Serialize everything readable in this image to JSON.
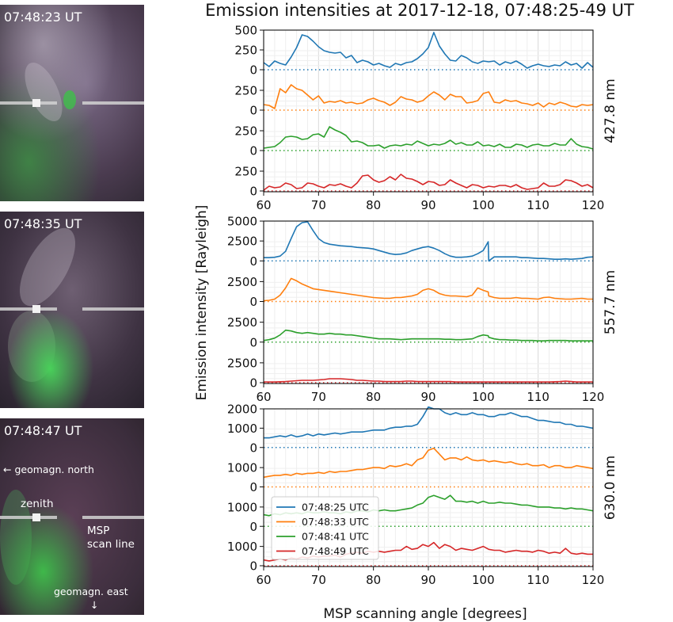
{
  "title": "Emission intensities at 2017-12-18, 07:48:25-49 UT",
  "photos": [
    {
      "time": "07:48:23 UT"
    },
    {
      "time": "07:48:35 UT"
    },
    {
      "time": "07:48:47 UT",
      "north_label": "← geomagn. north",
      "zenith_label": "zenith",
      "msp_label_1": "MSP",
      "msp_label_2": "scan line",
      "east_label": "geomagn. east",
      "east_arrow": "↓"
    }
  ],
  "colors": {
    "s0": "#1f77b4",
    "s1": "#ff7f0e",
    "s2": "#2ca02c",
    "s3": "#d62728",
    "grid": "#e6e6e6"
  },
  "legend_entries": [
    "07:48:25 UTC",
    "07:48:33 UTC",
    "07:48:41 UTC",
    "07:48:49 UTC"
  ],
  "chart_data": [
    {
      "type": "line",
      "wavelength_label": "427.8 nm",
      "xlim": [
        60,
        120
      ],
      "x_ticks": [
        60,
        70,
        80,
        90,
        100,
        110,
        120
      ],
      "x": [
        60,
        61,
        62,
        63,
        64,
        65,
        66,
        67,
        68,
        69,
        70,
        71,
        72,
        73,
        74,
        75,
        76,
        77,
        78,
        79,
        80,
        81,
        82,
        83,
        84,
        85,
        86,
        87,
        88,
        89,
        90,
        91,
        92,
        93,
        94,
        95,
        96,
        97,
        98,
        99,
        100,
        101,
        102,
        103,
        104,
        105,
        106,
        107,
        108,
        109,
        110,
        111,
        112,
        113,
        114,
        115,
        116,
        117,
        118,
        119,
        120
      ],
      "y_ticks_labeled": [
        [
          0,
          250,
          500
        ],
        [
          0,
          250
        ],
        [
          0,
          250
        ],
        [
          0,
          250
        ]
      ],
      "ylim": [
        0,
        500
      ],
      "series": [
        {
          "name": "07:48:25 UTC",
          "values": [
            90,
            40,
            110,
            80,
            60,
            160,
            280,
            440,
            420,
            360,
            290,
            240,
            220,
            210,
            220,
            150,
            180,
            90,
            120,
            100,
            60,
            80,
            50,
            30,
            80,
            60,
            90,
            100,
            140,
            200,
            280,
            470,
            300,
            200,
            120,
            110,
            180,
            150,
            100,
            80,
            110,
            100,
            110,
            60,
            100,
            80,
            110,
            70,
            20,
            50,
            70,
            50,
            40,
            60,
            50,
            100,
            60,
            80,
            20,
            90,
            30
          ]
        },
        {
          "name": "07:48:33 UTC",
          "values": [
            70,
            60,
            20,
            270,
            220,
            320,
            270,
            250,
            190,
            130,
            180,
            90,
            110,
            100,
            120,
            90,
            100,
            80,
            90,
            130,
            150,
            120,
            100,
            60,
            100,
            170,
            140,
            130,
            100,
            120,
            180,
            230,
            190,
            130,
            200,
            170,
            170,
            90,
            100,
            120,
            210,
            230,
            100,
            90,
            130,
            110,
            120,
            90,
            80,
            60,
            90,
            40,
            90,
            70,
            100,
            80,
            50,
            40,
            70,
            60,
            70
          ]
        },
        {
          "name": "07:48:41 UTC",
          "values": [
            30,
            40,
            50,
            100,
            170,
            180,
            170,
            140,
            150,
            200,
            210,
            170,
            300,
            260,
            230,
            190,
            110,
            120,
            100,
            60,
            60,
            70,
            30,
            60,
            70,
            60,
            80,
            70,
            120,
            90,
            60,
            80,
            70,
            90,
            130,
            80,
            100,
            70,
            70,
            110,
            60,
            70,
            50,
            80,
            40,
            40,
            80,
            70,
            40,
            70,
            80,
            60,
            60,
            90,
            70,
            70,
            150,
            80,
            50,
            40,
            20
          ]
        },
        {
          "name": "07:48:49 UTC",
          "values": [
            10,
            60,
            40,
            50,
            100,
            80,
            30,
            40,
            100,
            90,
            60,
            40,
            80,
            70,
            90,
            60,
            40,
            100,
            190,
            200,
            140,
            110,
            130,
            180,
            140,
            210,
            160,
            150,
            120,
            80,
            120,
            110,
            70,
            80,
            140,
            100,
            70,
            40,
            80,
            70,
            40,
            60,
            50,
            70,
            70,
            50,
            80,
            40,
            20,
            30,
            40,
            100,
            60,
            60,
            80,
            140,
            130,
            100,
            60,
            80,
            40
          ]
        }
      ]
    },
    {
      "type": "line",
      "wavelength_label": "557.7 nm",
      "xlim": [
        60,
        120
      ],
      "x_ticks": [
        60,
        70,
        80,
        90,
        100,
        110,
        120
      ],
      "x": [
        60,
        61,
        62,
        63,
        64,
        65,
        66,
        67,
        68,
        69,
        70,
        71,
        72,
        73,
        74,
        75,
        76,
        77,
        78,
        79,
        80,
        81,
        82,
        83,
        84,
        85,
        86,
        87,
        88,
        89,
        90,
        91,
        92,
        93,
        94,
        95,
        96,
        97,
        98,
        99,
        100,
        100.9,
        101,
        102,
        103,
        104,
        105,
        106,
        107,
        108,
        109,
        110,
        111,
        112,
        113,
        114,
        115,
        116,
        117,
        118,
        119,
        120
      ],
      "y_ticks_labeled": [
        [
          0,
          2500,
          5000
        ],
        [
          0,
          2500
        ],
        [
          0,
          2500
        ],
        [
          0,
          2500
        ]
      ],
      "ylim": [
        0,
        5000
      ],
      "series": [
        {
          "name": "07:48:25 UTC",
          "values": [
            400,
            400,
            450,
            600,
            1200,
            2800,
            4300,
            4800,
            4900,
            3800,
            2800,
            2300,
            2100,
            2000,
            1900,
            1850,
            1800,
            1700,
            1650,
            1600,
            1500,
            1300,
            1100,
            900,
            800,
            850,
            1000,
            1300,
            1500,
            1700,
            1800,
            1600,
            1300,
            900,
            600,
            450,
            450,
            500,
            600,
            900,
            1300,
            2400,
            0,
            500,
            500,
            500,
            500,
            500,
            400,
            400,
            350,
            300,
            300,
            250,
            200,
            200,
            250,
            200,
            250,
            300,
            450,
            500
          ]
        },
        {
          "name": "07:48:33 UTC",
          "values": [
            100,
            150,
            300,
            800,
            1700,
            2900,
            2600,
            2200,
            1900,
            1600,
            1500,
            1400,
            1300,
            1200,
            1100,
            1000,
            900,
            800,
            700,
            600,
            500,
            450,
            400,
            400,
            500,
            500,
            600,
            700,
            900,
            1400,
            1600,
            1400,
            1000,
            800,
            700,
            700,
            650,
            600,
            800,
            1700,
            1400,
            1200,
            700,
            500,
            400,
            400,
            400,
            500,
            400,
            400,
            350,
            300,
            500,
            550,
            400,
            350,
            300,
            300,
            350,
            400,
            300,
            300
          ]
        },
        {
          "name": "07:48:41 UTC",
          "values": [
            200,
            300,
            500,
            900,
            1500,
            1400,
            1200,
            1100,
            1200,
            1100,
            1000,
            1000,
            1100,
            1000,
            1000,
            900,
            900,
            800,
            700,
            600,
            500,
            400,
            400,
            400,
            350,
            300,
            350,
            400,
            400,
            400,
            400,
            400,
            400,
            350,
            350,
            300,
            300,
            350,
            400,
            700,
            900,
            800,
            600,
            400,
            300,
            300,
            250,
            250,
            200,
            200,
            200,
            150,
            150,
            200,
            200,
            200,
            200,
            150,
            150,
            150,
            150,
            150
          ]
        },
        {
          "name": "07:48:49 UTC",
          "values": [
            100,
            100,
            100,
            120,
            150,
            200,
            250,
            300,
            300,
            300,
            350,
            400,
            500,
            500,
            500,
            450,
            400,
            300,
            300,
            250,
            200,
            200,
            150,
            150,
            150,
            150,
            200,
            200,
            150,
            150,
            150,
            150,
            150,
            150,
            150,
            100,
            100,
            100,
            100,
            100,
            100,
            100,
            100,
            100,
            100,
            100,
            100,
            100,
            100,
            100,
            100,
            100,
            100,
            100,
            120,
            150,
            200,
            150,
            100,
            100,
            100,
            100
          ]
        }
      ]
    },
    {
      "type": "line",
      "wavelength_label": "630.0 nm",
      "xlim": [
        60,
        120
      ],
      "x_ticks": [
        60,
        70,
        80,
        90,
        100,
        110,
        120
      ],
      "x": [
        60,
        61,
        62,
        63,
        64,
        65,
        66,
        67,
        68,
        69,
        70,
        71,
        72,
        73,
        74,
        75,
        76,
        77,
        78,
        79,
        80,
        81,
        82,
        83,
        84,
        85,
        86,
        87,
        88,
        89,
        90,
        91,
        92,
        93,
        94,
        95,
        96,
        97,
        98,
        99,
        100,
        101,
        102,
        103,
        104,
        105,
        106,
        107,
        108,
        109,
        110,
        111,
        112,
        113,
        114,
        115,
        116,
        117,
        118,
        119,
        120
      ],
      "y_ticks_labeled": [
        [
          0,
          1000,
          2000
        ],
        [
          0,
          1000
        ],
        [
          0,
          1000
        ],
        [
          0,
          1000
        ]
      ],
      "ylim": [
        0,
        2000
      ],
      "series": [
        {
          "name": "07:48:25 UTC",
          "values": [
            500,
            500,
            550,
            600,
            550,
            650,
            550,
            600,
            700,
            600,
            700,
            650,
            700,
            750,
            700,
            750,
            800,
            800,
            800,
            850,
            900,
            900,
            900,
            1000,
            1050,
            1050,
            1100,
            1100,
            1200,
            1600,
            2100,
            2000,
            2000,
            1800,
            1700,
            1800,
            1700,
            1700,
            1800,
            1700,
            1700,
            1600,
            1600,
            1700,
            1700,
            1800,
            1700,
            1600,
            1600,
            1500,
            1400,
            1400,
            1350,
            1300,
            1300,
            1200,
            1200,
            1100,
            1100,
            1050,
            1000
          ]
        },
        {
          "name": "07:48:33 UTC",
          "values": [
            500,
            550,
            600,
            600,
            650,
            600,
            700,
            650,
            700,
            700,
            750,
            700,
            800,
            750,
            800,
            800,
            850,
            900,
            900,
            950,
            1000,
            1000,
            950,
            1100,
            1050,
            1100,
            1200,
            1100,
            1400,
            1500,
            1900,
            2000,
            1700,
            1400,
            1500,
            1500,
            1400,
            1550,
            1400,
            1350,
            1400,
            1300,
            1350,
            1300,
            1250,
            1300,
            1200,
            1150,
            1200,
            1100,
            1100,
            1150,
            1000,
            1100,
            1100,
            1000,
            1000,
            1100,
            1050,
            1000,
            950
          ]
        },
        {
          "name": "07:48:41 UTC",
          "values": [
            600,
            550,
            650,
            600,
            700,
            650,
            700,
            650,
            750,
            700,
            700,
            750,
            700,
            700,
            650,
            750,
            700,
            800,
            800,
            750,
            850,
            800,
            850,
            800,
            800,
            850,
            900,
            950,
            1100,
            1200,
            1500,
            1600,
            1500,
            1400,
            1600,
            1300,
            1300,
            1250,
            1300,
            1200,
            1300,
            1200,
            1200,
            1250,
            1200,
            1200,
            1150,
            1100,
            1100,
            1050,
            1000,
            1000,
            1000,
            950,
            950,
            900,
            950,
            900,
            900,
            850,
            800
          ]
        },
        {
          "name": "07:48:49 UTC",
          "values": [
            300,
            250,
            300,
            350,
            300,
            400,
            350,
            450,
            400,
            500,
            450,
            500,
            500,
            550,
            450,
            600,
            650,
            700,
            650,
            750,
            700,
            750,
            700,
            750,
            800,
            800,
            1000,
            850,
            900,
            1100,
            1000,
            1200,
            900,
            1100,
            1000,
            800,
            900,
            850,
            800,
            900,
            1000,
            850,
            800,
            800,
            700,
            750,
            800,
            750,
            750,
            700,
            800,
            750,
            650,
            700,
            650,
            900,
            650,
            600,
            650,
            600,
            600
          ]
        }
      ]
    }
  ],
  "ylabel": "Emission intensity [Rayleigh]",
  "xlabel": "MSP scanning angle [degrees]"
}
